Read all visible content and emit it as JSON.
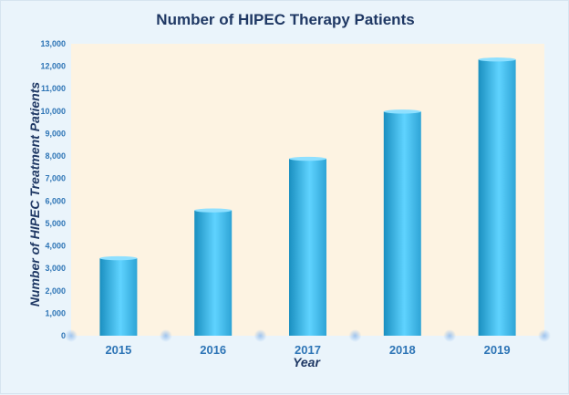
{
  "chart_data": {
    "type": "bar",
    "title": "Number of HIPEC Therapy Patients",
    "xlabel": "Year",
    "ylabel": "Number of HIPEC Treatment  Patients",
    "categories": [
      "2015",
      "2016",
      "2017",
      "2018",
      "2019"
    ],
    "values": [
      3450,
      5580,
      7880,
      9980,
      12300
    ],
    "ylim": [
      0,
      13000
    ],
    "yticks": [
      "0",
      "1,000",
      "2,000",
      "3,000",
      "4,000",
      "5,000",
      "6,000",
      "7,000",
      "8,000",
      "9,000",
      "10,000",
      "11,000",
      "12,000",
      "13,000"
    ],
    "grid": false,
    "legend": "none",
    "colors": {
      "bar_light": "#5fd3ff",
      "bar_dark": "#1a8fc0",
      "plot_bg": "#fdf3e2",
      "text": "#1f3864",
      "tick_text": "#2e75b6"
    }
  }
}
